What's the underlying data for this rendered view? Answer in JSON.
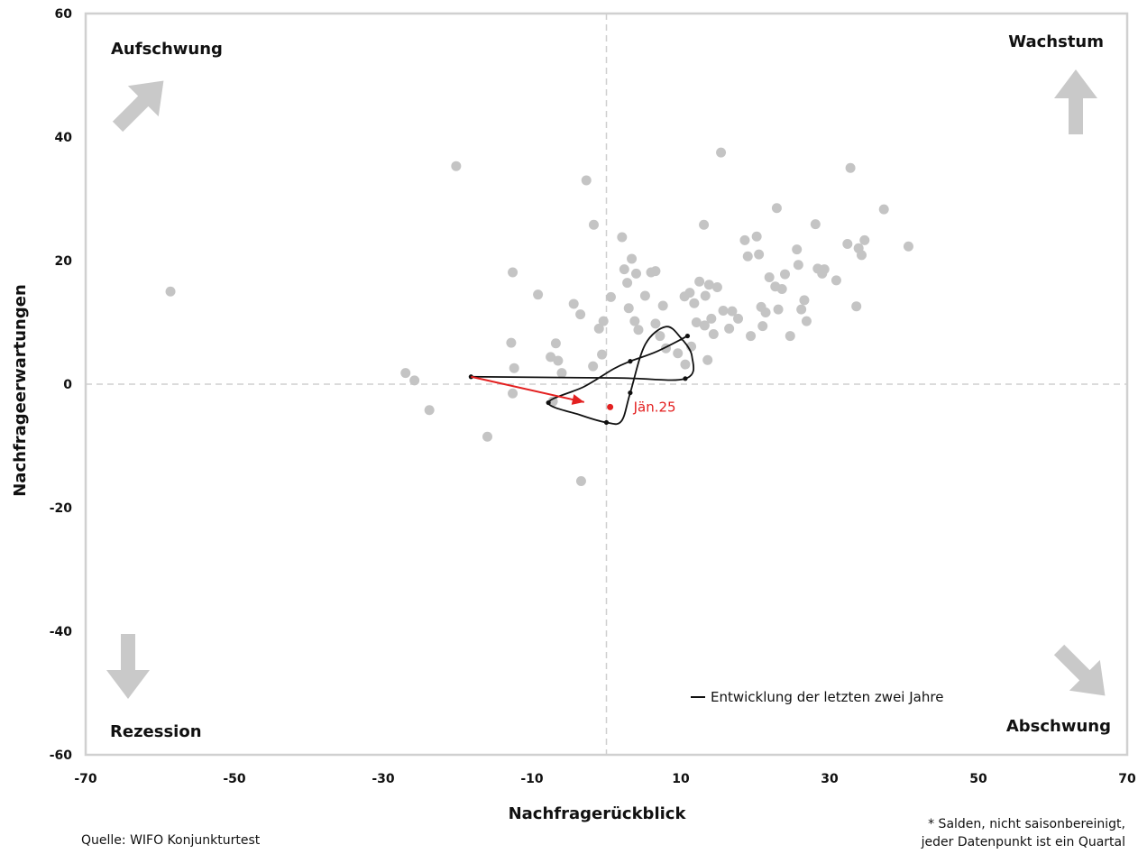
{
  "chart_data": {
    "type": "scatter",
    "xlabel": "Nachfragerückblick",
    "ylabel": "Nachfrageerwartungen",
    "xlim": [
      -70,
      70
    ],
    "ylim": [
      -60,
      60
    ],
    "xticks": [
      "-70",
      "-50",
      "-30",
      "-10",
      "10",
      "30",
      "50",
      "70"
    ],
    "yticks": [
      "60",
      "40",
      "20",
      "0",
      "-20",
      "-40",
      "-60"
    ],
    "grid": false,
    "quadrants": {
      "top_left": "Aufschwung",
      "top_right": "Wachstum",
      "bottom_left": "Rezession",
      "bottom_right": "Abschwung"
    },
    "legend": {
      "position": "bottom-right",
      "label": "Entwicklung der letzten zwei Jahre"
    },
    "colors": {
      "scatter": "#c4c4c4",
      "path": "#111111",
      "latest": "#e32020",
      "guide": "#cfcfcf",
      "arrow": "#c9c9c9"
    },
    "highlight_label": "Jän.25",
    "scatter_points": [
      [
        -58.6,
        15.0
      ],
      [
        -20.2,
        35.3
      ],
      [
        -2.7,
        33.0
      ],
      [
        15.4,
        37.5
      ],
      [
        32.8,
        35.0
      ],
      [
        -27.0,
        1.8
      ],
      [
        -25.8,
        0.6
      ],
      [
        -23.8,
        -4.2
      ],
      [
        -16.0,
        -8.5
      ],
      [
        -3.4,
        -15.7
      ],
      [
        -12.6,
        18.1
      ],
      [
        -9.2,
        14.5
      ],
      [
        -12.8,
        6.7
      ],
      [
        -12.4,
        2.6
      ],
      [
        -12.6,
        -1.5
      ],
      [
        -6.8,
        6.6
      ],
      [
        -7.5,
        4.4
      ],
      [
        -6.5,
        3.8
      ],
      [
        -6.0,
        1.8
      ],
      [
        -7.2,
        -2.8
      ],
      [
        -4.4,
        13.0
      ],
      [
        -3.5,
        11.3
      ],
      [
        -1.0,
        9.0
      ],
      [
        -0.4,
        10.2
      ],
      [
        -0.6,
        4.8
      ],
      [
        -1.8,
        2.9
      ],
      [
        -1.7,
        25.8
      ],
      [
        0.6,
        14.1
      ],
      [
        2.1,
        23.8
      ],
      [
        2.4,
        18.6
      ],
      [
        3.4,
        20.3
      ],
      [
        2.8,
        16.4
      ],
      [
        4.0,
        17.9
      ],
      [
        3.0,
        12.3
      ],
      [
        3.8,
        10.2
      ],
      [
        4.3,
        8.8
      ],
      [
        5.2,
        14.3
      ],
      [
        6.0,
        18.1
      ],
      [
        6.6,
        18.3
      ],
      [
        6.6,
        9.8
      ],
      [
        7.2,
        7.8
      ],
      [
        7.6,
        12.7
      ],
      [
        8.0,
        5.8
      ],
      [
        9.6,
        5.0
      ],
      [
        10.6,
        3.2
      ],
      [
        11.4,
        6.1
      ],
      [
        10.5,
        14.2
      ],
      [
        11.2,
        14.8
      ],
      [
        11.8,
        13.1
      ],
      [
        12.1,
        10.0
      ],
      [
        12.5,
        16.6
      ],
      [
        13.1,
        25.8
      ],
      [
        13.3,
        14.3
      ],
      [
        13.2,
        9.5
      ],
      [
        13.6,
        3.9
      ],
      [
        13.8,
        16.1
      ],
      [
        14.1,
        10.6
      ],
      [
        14.4,
        8.1
      ],
      [
        14.9,
        15.7
      ],
      [
        15.7,
        11.9
      ],
      [
        16.5,
        9.0
      ],
      [
        16.9,
        11.8
      ],
      [
        17.7,
        10.6
      ],
      [
        18.6,
        23.3
      ],
      [
        19.0,
        20.7
      ],
      [
        19.4,
        7.8
      ],
      [
        20.2,
        23.9
      ],
      [
        20.5,
        21.0
      ],
      [
        20.8,
        12.5
      ],
      [
        21.0,
        9.4
      ],
      [
        21.4,
        11.6
      ],
      [
        21.9,
        17.3
      ],
      [
        22.7,
        15.8
      ],
      [
        22.9,
        28.5
      ],
      [
        23.1,
        12.1
      ],
      [
        23.6,
        15.4
      ],
      [
        24.0,
        17.8
      ],
      [
        24.7,
        7.8
      ],
      [
        25.6,
        21.8
      ],
      [
        25.8,
        19.3
      ],
      [
        26.2,
        12.1
      ],
      [
        26.6,
        13.6
      ],
      [
        26.9,
        10.2
      ],
      [
        28.1,
        25.9
      ],
      [
        28.4,
        18.7
      ],
      [
        29.0,
        17.9
      ],
      [
        29.3,
        18.6
      ],
      [
        30.9,
        16.8
      ],
      [
        32.4,
        22.7
      ],
      [
        33.6,
        12.6
      ],
      [
        33.9,
        22.0
      ],
      [
        34.3,
        20.9
      ],
      [
        34.7,
        23.3
      ],
      [
        37.3,
        28.3
      ],
      [
        40.6,
        22.3
      ]
    ],
    "series": [
      {
        "type": "curve",
        "points": [
          [
            -18.2,
            1.2
          ],
          [
            1.4,
            1.0
          ],
          [
            10.6,
            0.9
          ],
          [
            11.5,
            4.5
          ],
          [
            10.0,
            7.5
          ],
          [
            8.0,
            9.3
          ],
          [
            5.2,
            6.4
          ],
          [
            3.2,
            -1.4
          ],
          [
            2.0,
            -6.0
          ],
          [
            0.0,
            -6.2
          ],
          [
            -3.5,
            -5.0
          ],
          [
            -7.8,
            -3.0
          ],
          [
            -3.0,
            -0.4
          ],
          [
            1.0,
            2.5
          ],
          [
            3.2,
            3.7
          ],
          [
            6.8,
            5.3
          ],
          [
            10.9,
            7.8
          ]
        ]
      },
      {
        "type": "arrow",
        "points": [
          [
            -18.2,
            1.2
          ],
          [
            -3.0,
            -2.9
          ]
        ]
      }
    ],
    "latest_point": [
      0.5,
      -3.7
    ]
  },
  "notes": {
    "source": "Quelle: WIFO Konjunkturtest",
    "footnote_line1": "* Salden, nicht saisonbereinigt,",
    "footnote_line2": "jeder Datenpunkt ist ein Quartal"
  }
}
